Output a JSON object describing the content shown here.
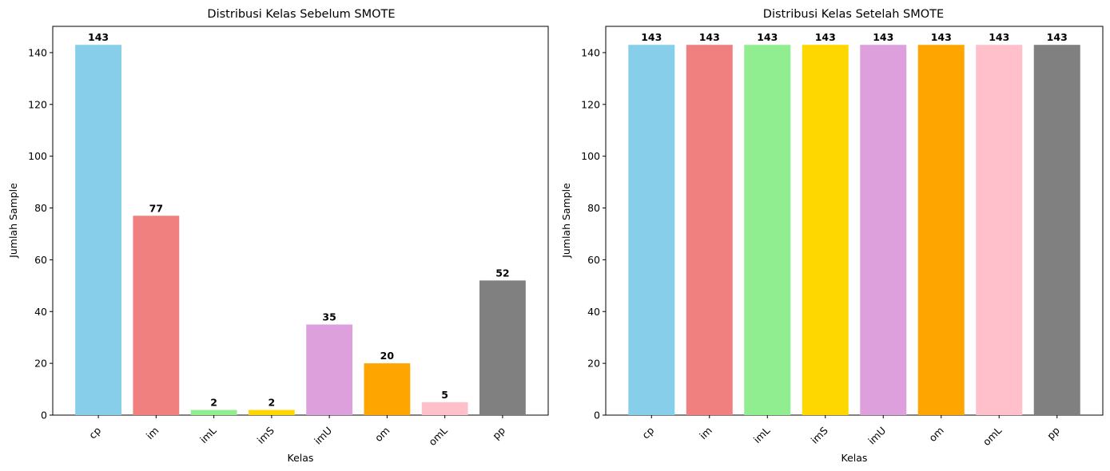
{
  "chart_data": [
    {
      "type": "bar",
      "title": "Distribusi Kelas Sebelum SMOTE",
      "xlabel": "Kelas",
      "ylabel": "Jumlah Sample",
      "categories": [
        "cp",
        "im",
        "imL",
        "imS",
        "imU",
        "om",
        "omL",
        "pp"
      ],
      "values": [
        143,
        77,
        2,
        2,
        35,
        20,
        5,
        52
      ],
      "data_labels": [
        "143",
        "77",
        "2",
        "2",
        "35",
        "20",
        "5",
        "52"
      ],
      "colors": [
        "#87ceeb",
        "#f08080",
        "#90ee90",
        "#ffd700",
        "#dda0dd",
        "#ffa500",
        "#ffc0cb",
        "#808080"
      ],
      "ylim": [
        0,
        150.15
      ],
      "yticks": [
        0,
        20,
        40,
        60,
        80,
        100,
        120,
        140
      ],
      "ytick_labels": [
        "0",
        "20",
        "40",
        "60",
        "80",
        "100",
        "120",
        "140"
      ],
      "grid": false,
      "xtick_rotation": 45
    },
    {
      "type": "bar",
      "title": "Distribusi Kelas Setelah SMOTE",
      "xlabel": "Kelas",
      "ylabel": "Jumlah Sample",
      "categories": [
        "cp",
        "im",
        "imL",
        "imS",
        "imU",
        "om",
        "omL",
        "pp"
      ],
      "values": [
        143,
        143,
        143,
        143,
        143,
        143,
        143,
        143
      ],
      "data_labels": [
        "143",
        "143",
        "143",
        "143",
        "143",
        "143",
        "143",
        "143"
      ],
      "colors": [
        "#87ceeb",
        "#f08080",
        "#90ee90",
        "#ffd700",
        "#dda0dd",
        "#ffa500",
        "#ffc0cb",
        "#808080"
      ],
      "ylim": [
        0,
        150.15
      ],
      "yticks": [
        0,
        20,
        40,
        60,
        80,
        100,
        120,
        140
      ],
      "ytick_labels": [
        "0",
        "20",
        "40",
        "60",
        "80",
        "100",
        "120",
        "140"
      ],
      "grid": false,
      "xtick_rotation": 45
    }
  ]
}
